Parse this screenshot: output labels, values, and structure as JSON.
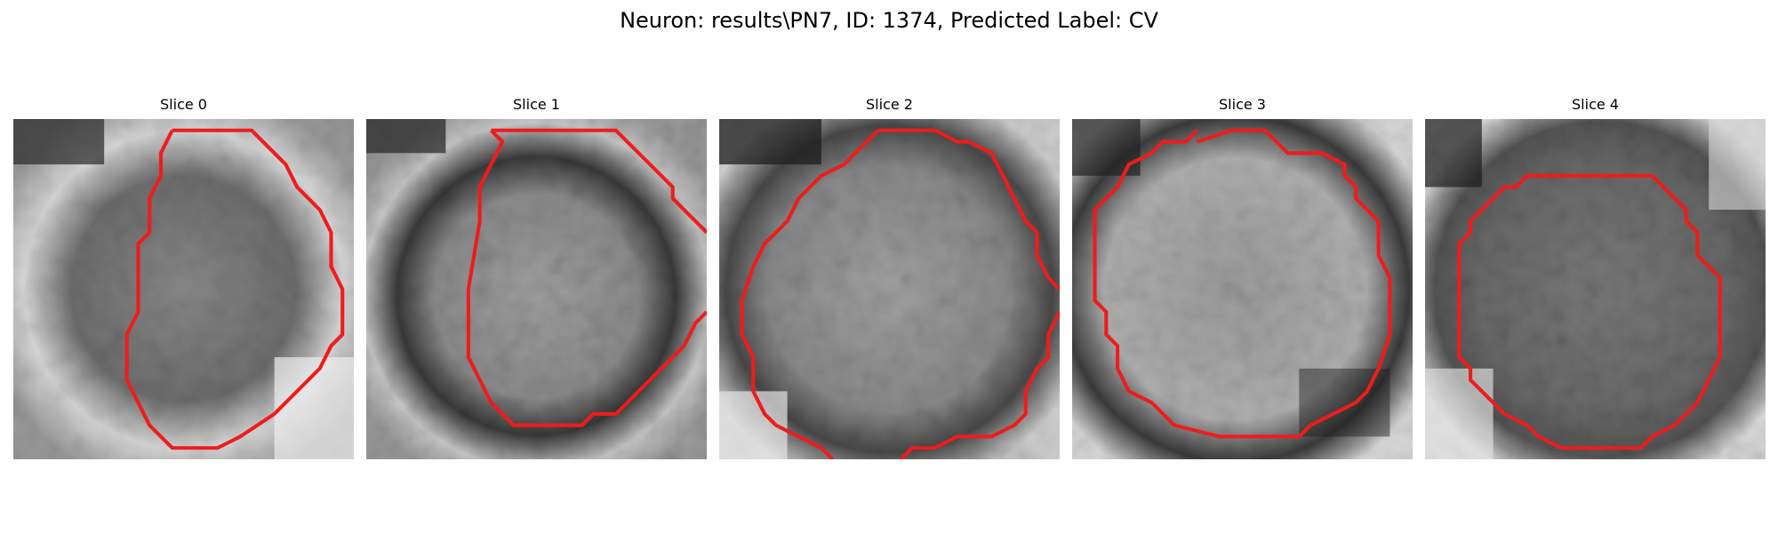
{
  "figure": {
    "title": "Neuron: results\\PN7, ID: 1374, Predicted Label: CV",
    "contour_color": "#ee1c1c"
  },
  "panels": [
    {
      "title": "Slice 0"
    },
    {
      "title": "Slice 1"
    },
    {
      "title": "Slice 2"
    },
    {
      "title": "Slice 3"
    },
    {
      "title": "Slice 4"
    }
  ]
}
